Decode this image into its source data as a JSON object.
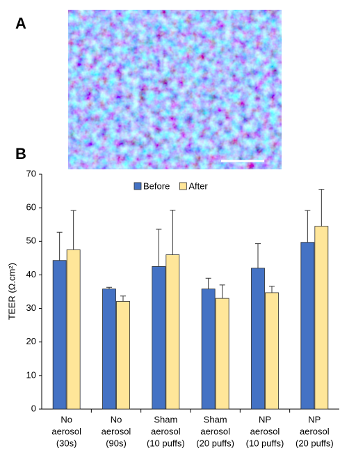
{
  "panel_labels": [
    "A",
    "B"
  ],
  "chart_data": {
    "type": "bar",
    "ylabel": "TEER (Ω.cm²)",
    "categories": [
      [
        "No",
        "aerosol",
        "(30s)"
      ],
      [
        "No",
        "aerosol",
        "(90s)"
      ],
      [
        "Sham",
        "aerosol",
        "(10 puffs)"
      ],
      [
        "Sham",
        "aerosol",
        "(20 puffs)"
      ],
      [
        "NP",
        "aerosol",
        "(10 puffs)"
      ],
      [
        "NP",
        "aerosol",
        "(20 puffs)"
      ]
    ],
    "series": [
      {
        "name": "Before",
        "color": "#4472c4",
        "values": [
          44.3,
          35.8,
          42.5,
          35.8,
          42,
          49.7
        ],
        "errors": [
          8.4,
          0.5,
          11.1,
          3.2,
          7.3,
          9.5
        ]
      },
      {
        "name": "After",
        "color": "#ffe699",
        "values": [
          47.5,
          32.1,
          46,
          33,
          34.7,
          54.5
        ],
        "errors": [
          11.7,
          1.6,
          13.3,
          4,
          1.9,
          11
        ]
      }
    ],
    "ylim": [
      0,
      70
    ],
    "yticks": [
      0,
      10,
      20,
      30,
      40,
      50,
      60,
      70
    ],
    "legend": "top"
  }
}
